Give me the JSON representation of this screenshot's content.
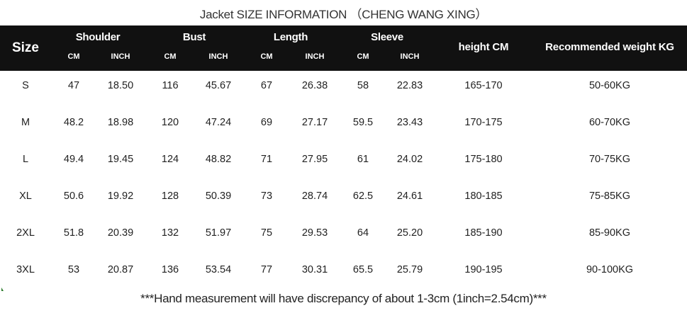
{
  "title": "Jacket  SIZE INFORMATION  （CHENG WANG XING）",
  "header": {
    "size": "Size",
    "groups": [
      "Shoulder",
      "Bust",
      "Length",
      "Sleeve"
    ],
    "units": [
      "CM",
      "INCH",
      "CM",
      "INCH",
      "CM",
      "INCH",
      "CM",
      "INCH"
    ],
    "height": "height  CM",
    "weight": "Recommended weight KG"
  },
  "rows": [
    [
      "S",
      "47",
      "18.50",
      "116",
      "45.67",
      "67",
      "26.38",
      "58",
      "22.83",
      "165-170",
      "50-60KG"
    ],
    [
      "M",
      "48.2",
      "18.98",
      "120",
      "47.24",
      "69",
      "27.17",
      "59.5",
      "23.43",
      "170-175",
      "60-70KG"
    ],
    [
      "L",
      "49.4",
      "19.45",
      "124",
      "48.82",
      "71",
      "27.95",
      "61",
      "24.02",
      "175-180",
      "70-75KG"
    ],
    [
      "XL",
      "50.6",
      "19.92",
      "128",
      "50.39",
      "73",
      "28.74",
      "62.5",
      "24.61",
      "180-185",
      "75-85KG"
    ],
    [
      "2XL",
      "51.8",
      "20.39",
      "132",
      "51.97",
      "75",
      "29.53",
      "64",
      "25.20",
      "185-190",
      "85-90KG"
    ],
    [
      "3XL",
      "53",
      "20.87",
      "136",
      "53.54",
      "77",
      "30.31",
      "65.5",
      "25.79",
      "190-195",
      "90-100KG"
    ]
  ],
  "note": "***Hand measurement will have discrepancy of about 1-3cm (1inch=2.54cm)***"
}
